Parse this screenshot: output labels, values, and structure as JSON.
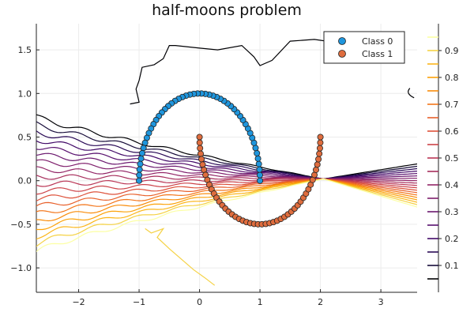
{
  "chart_data": {
    "type": "scatter",
    "title": "half-moons problem",
    "xlabel": "",
    "ylabel": "",
    "xlim": [
      -2.7,
      3.6
    ],
    "ylim": [
      -1.28,
      1.8
    ],
    "x_ticks": [
      -2,
      -1,
      0,
      1,
      2,
      3
    ],
    "x_tick_labels": [
      "−2",
      "−1",
      "0",
      "1",
      "2",
      "3"
    ],
    "y_ticks": [
      -1.0,
      -0.5,
      0.0,
      0.5,
      1.0,
      1.5
    ],
    "y_tick_labels": [
      "−1.0",
      "−0.5",
      "0.0",
      "0.5",
      "1.0",
      "1.5"
    ],
    "grid": true,
    "legend_position": "top-right",
    "series": [
      {
        "name": "Class 0",
        "color": "#1f96dd",
        "shape": "half-moon upper arc",
        "center": [
          0,
          0
        ],
        "radius": 1.0,
        "angle_range_deg": [
          0,
          180
        ],
        "n_points": 50
      },
      {
        "name": "Class 1",
        "color": "#df6d3e",
        "shape": "half-moon lower arc",
        "center": [
          1,
          0.5
        ],
        "radius": 1.0,
        "angle_range_deg": [
          180,
          360
        ],
        "n_points": 50
      }
    ],
    "contour_levels": [
      0.05,
      0.1,
      0.15,
      0.2,
      0.25,
      0.3,
      0.35,
      0.4,
      0.45,
      0.5,
      0.55,
      0.6,
      0.65,
      0.7,
      0.75,
      0.8,
      0.85,
      0.9,
      0.95
    ],
    "contour_colors": [
      "#000004",
      "#160b39",
      "#2b0b57",
      "#420a68",
      "#57106e",
      "#6a176e",
      "#7f1e6c",
      "#932667",
      "#a72e5c",
      "#ba3655",
      "#cc4248",
      "#dd513a",
      "#e8612c",
      "#f3761b",
      "#f98c0a",
      "#fba20a",
      "#fbb61a",
      "#f5d245",
      "#fcffa4"
    ],
    "colorbar": {
      "ticks": [
        0.1,
        0.2,
        0.3,
        0.4,
        0.5,
        0.6,
        0.7,
        0.8,
        0.9
      ],
      "tick_labels": [
        "0.1",
        "0.2",
        "0.3",
        "0.4",
        "0.5",
        "0.6",
        "0.7",
        "0.8",
        "0.9"
      ],
      "range": [
        0.0,
        1.0
      ]
    }
  }
}
